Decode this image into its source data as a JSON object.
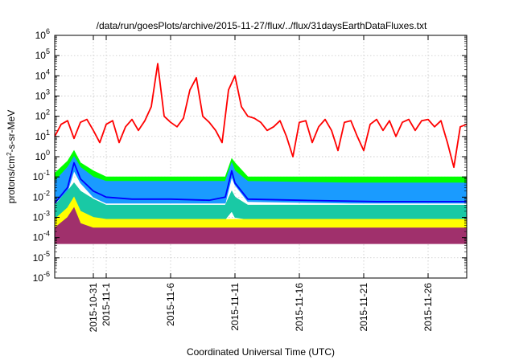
{
  "chart_data": {
    "type": "line",
    "title": "/data/run/goesPlots/archive/2015-11-27/flux/../flux/31daysEarthDataFluxes.txt",
    "xlabel": "Coordinated Universal Time (UTC)",
    "ylabel_parts": {
      "base": "protons/cm",
      "sup": "2",
      "rest": "-s-sr-MeV"
    },
    "x_axis": {
      "type": "date",
      "range": [
        "2015-10-28",
        "2015-11-29"
      ],
      "tick_labels": [
        {
          "label": "2015-10-31",
          "date": "2015-10-31"
        },
        {
          "label": "2015-11-1",
          "date": "2015-11-01"
        },
        {
          "label": "2015-11-6",
          "date": "2015-11-06"
        },
        {
          "label": "2015-11-11",
          "date": "2015-11-11"
        },
        {
          "label": "2015-11-16",
          "date": "2015-11-16"
        },
        {
          "label": "2015-11-21",
          "date": "2015-11-21"
        },
        {
          "label": "2015-11-26",
          "date": "2015-11-26"
        }
      ]
    },
    "y_axis": {
      "scale": "log",
      "range": [
        1e-06,
        1000000.0
      ],
      "tick_labels": [
        {
          "base": "10",
          "exp": "-6"
        },
        {
          "base": "10",
          "exp": "-5"
        },
        {
          "base": "10",
          "exp": "-4"
        },
        {
          "base": "10",
          "exp": "-3"
        },
        {
          "base": "10",
          "exp": "-2"
        },
        {
          "base": "10",
          "exp": "-1"
        },
        {
          "base": "10",
          "exp": "0"
        },
        {
          "base": "10",
          "exp": "1"
        },
        {
          "base": "10",
          "exp": "2"
        },
        {
          "base": "10",
          "exp": "3"
        },
        {
          "base": "10",
          "exp": "4"
        },
        {
          "base": "10",
          "exp": "5"
        },
        {
          "base": "10",
          "exp": "6"
        }
      ]
    },
    "grid": true,
    "legend": "none",
    "series": [
      {
        "color": "#ff0000",
        "band": false,
        "points": [
          [
            "2015-10-28",
            10
          ],
          [
            "2015-10-28T12",
            40
          ],
          [
            "2015-10-29",
            60
          ],
          [
            "2015-10-29T12",
            8
          ],
          [
            "2015-10-30",
            50
          ],
          [
            "2015-10-30T12",
            70
          ],
          [
            "2015-10-31",
            20
          ],
          [
            "2015-10-31T12",
            5
          ],
          [
            "2015-11-01",
            40
          ],
          [
            "2015-11-01T12",
            60
          ],
          [
            "2015-11-02",
            5
          ],
          [
            "2015-11-02T12",
            30
          ],
          [
            "2015-11-03",
            70
          ],
          [
            "2015-11-03T12",
            20
          ],
          [
            "2015-11-04",
            60
          ],
          [
            "2015-11-04T12",
            300
          ],
          [
            "2015-11-05",
            40000
          ],
          [
            "2015-11-05T12",
            100
          ],
          [
            "2015-11-06",
            50
          ],
          [
            "2015-11-06T12",
            30
          ],
          [
            "2015-11-07",
            80
          ],
          [
            "2015-11-07T12",
            2000
          ],
          [
            "2015-11-08",
            8000
          ],
          [
            "2015-11-08T12",
            100
          ],
          [
            "2015-11-09",
            50
          ],
          [
            "2015-11-09T12",
            20
          ],
          [
            "2015-11-10",
            5
          ],
          [
            "2015-11-10T12",
            2000
          ],
          [
            "2015-11-11",
            10000
          ],
          [
            "2015-11-11T12",
            300
          ],
          [
            "2015-11-12",
            100
          ],
          [
            "2015-11-12T12",
            80
          ],
          [
            "2015-11-13",
            50
          ],
          [
            "2015-11-13T12",
            20
          ],
          [
            "2015-11-14",
            30
          ],
          [
            "2015-11-14T12",
            60
          ],
          [
            "2015-11-15",
            10
          ],
          [
            "2015-11-15T12",
            1
          ],
          [
            "2015-11-16",
            50
          ],
          [
            "2015-11-16T12",
            60
          ],
          [
            "2015-11-17",
            5
          ],
          [
            "2015-11-17T12",
            30
          ],
          [
            "2015-11-18",
            70
          ],
          [
            "2015-11-18T12",
            20
          ],
          [
            "2015-11-19",
            2
          ],
          [
            "2015-11-19T12",
            50
          ],
          [
            "2015-11-20",
            60
          ],
          [
            "2015-11-20T12",
            10
          ],
          [
            "2015-11-21",
            2
          ],
          [
            "2015-11-21T12",
            40
          ],
          [
            "2015-11-22",
            70
          ],
          [
            "2015-11-22T12",
            20
          ],
          [
            "2015-11-23",
            60
          ],
          [
            "2015-11-23T12",
            10
          ],
          [
            "2015-11-24",
            50
          ],
          [
            "2015-11-24T12",
            70
          ],
          [
            "2015-11-25",
            20
          ],
          [
            "2015-11-25T12",
            60
          ],
          [
            "2015-11-26",
            70
          ],
          [
            "2015-11-26T12",
            30
          ],
          [
            "2015-11-27",
            60
          ],
          [
            "2015-11-27T12",
            5
          ],
          [
            "2015-11-28",
            0.3
          ],
          [
            "2015-11-28T12",
            30
          ],
          [
            "2015-11-29",
            40
          ]
        ]
      },
      {
        "color": "#00ff00",
        "band": true,
        "points": [
          [
            "2015-10-28",
            0.05,
            0.15
          ],
          [
            "2015-10-29",
            0.1,
            0.6
          ],
          [
            "2015-10-29T12",
            0.5,
            2
          ],
          [
            "2015-10-30",
            0.1,
            0.5
          ],
          [
            "2015-10-31",
            0.04,
            0.2
          ],
          [
            "2015-11-01",
            0.02,
            0.1
          ],
          [
            "2015-11-03",
            0.02,
            0.1
          ],
          [
            "2015-11-06",
            0.02,
            0.1
          ],
          [
            "2015-11-09",
            0.02,
            0.1
          ],
          [
            "2015-11-10T06",
            0.02,
            0.1
          ],
          [
            "2015-11-10T18",
            0.2,
            0.8
          ],
          [
            "2015-11-11",
            0.1,
            0.5
          ],
          [
            "2015-11-12",
            0.03,
            0.1
          ],
          [
            "2015-11-15",
            0.02,
            0.1
          ],
          [
            "2015-11-20",
            0.02,
            0.1
          ],
          [
            "2015-11-25",
            0.02,
            0.1
          ],
          [
            "2015-11-29",
            0.02,
            0.1
          ]
        ]
      },
      {
        "color": "#1a9bff",
        "band": true,
        "points": [
          [
            "2015-10-28",
            0.005,
            0.06
          ],
          [
            "2015-10-29",
            0.02,
            0.3
          ],
          [
            "2015-10-29T12",
            0.2,
            1
          ],
          [
            "2015-10-30",
            0.05,
            0.3
          ],
          [
            "2015-10-31",
            0.01,
            0.1
          ],
          [
            "2015-11-01",
            0.005,
            0.06
          ],
          [
            "2015-11-05",
            0.005,
            0.06
          ],
          [
            "2015-11-10T06",
            0.005,
            0.06
          ],
          [
            "2015-11-10T18",
            0.1,
            0.5
          ],
          [
            "2015-11-11",
            0.04,
            0.2
          ],
          [
            "2015-11-12",
            0.006,
            0.06
          ],
          [
            "2015-11-20",
            0.005,
            0.05
          ],
          [
            "2015-11-29",
            0.005,
            0.05
          ]
        ]
      },
      {
        "color": "#0000ff",
        "band": false,
        "points": [
          [
            "2015-10-28",
            0.005
          ],
          [
            "2015-10-29",
            0.03
          ],
          [
            "2015-10-29T12",
            0.5
          ],
          [
            "2015-10-30",
            0.08
          ],
          [
            "2015-10-31",
            0.02
          ],
          [
            "2015-11-01",
            0.01
          ],
          [
            "2015-11-03",
            0.008
          ],
          [
            "2015-11-06",
            0.008
          ],
          [
            "2015-11-09",
            0.007
          ],
          [
            "2015-11-10T06",
            0.01
          ],
          [
            "2015-11-10T18",
            0.2
          ],
          [
            "2015-11-11",
            0.05
          ],
          [
            "2015-11-12",
            0.008
          ],
          [
            "2015-11-16",
            0.007
          ],
          [
            "2015-11-22",
            0.006
          ],
          [
            "2015-11-29",
            0.006
          ]
        ]
      },
      {
        "color": "#19c9a5",
        "band": true,
        "points": [
          [
            "2015-10-28",
            0.0008,
            0.004
          ],
          [
            "2015-10-29",
            0.002,
            0.02
          ],
          [
            "2015-10-29T12",
            0.005,
            0.05
          ],
          [
            "2015-10-30",
            0.002,
            0.02
          ],
          [
            "2015-10-31",
            0.001,
            0.008
          ],
          [
            "2015-11-01",
            0.0008,
            0.004
          ],
          [
            "2015-11-10T06",
            0.0008,
            0.004
          ],
          [
            "2015-11-10T18",
            0.002,
            0.02
          ],
          [
            "2015-11-11",
            0.001,
            0.01
          ],
          [
            "2015-11-12",
            0.0008,
            0.004
          ],
          [
            "2015-11-29",
            0.0007,
            0.004
          ]
        ]
      },
      {
        "color": "#ffff00",
        "band": true,
        "points": [
          [
            "2015-10-28",
            0.0002,
            0.0008
          ],
          [
            "2015-10-29",
            0.0005,
            0.003
          ],
          [
            "2015-10-29T12",
            0.002,
            0.01
          ],
          [
            "2015-10-30",
            0.0005,
            0.002
          ],
          [
            "2015-10-31",
            0.0003,
            0.001
          ],
          [
            "2015-11-01",
            0.0002,
            0.0008
          ],
          [
            "2015-11-29",
            0.0002,
            0.0008
          ]
        ]
      },
      {
        "color": "#a0306c",
        "band": true,
        "points": [
          [
            "2015-10-28",
            5e-05,
            0.0003
          ],
          [
            "2015-10-29",
            5e-05,
            0.001
          ],
          [
            "2015-10-29T12",
            5e-05,
            0.003
          ],
          [
            "2015-10-30",
            5e-05,
            0.0005
          ],
          [
            "2015-10-31",
            5e-05,
            0.0003
          ],
          [
            "2015-11-29",
            5e-05,
            0.0003
          ]
        ]
      }
    ]
  }
}
